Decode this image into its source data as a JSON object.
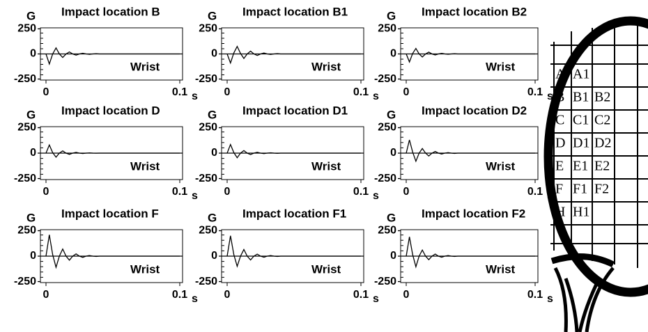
{
  "chart_data": [
    {
      "type": "line",
      "title": "Impact location B",
      "y_label": "G",
      "x_unit": "s",
      "annotation": "Wrist",
      "x": [
        0,
        0.0025,
        0.005,
        0.0075,
        0.01,
        0.0125,
        0.015,
        0.0175,
        0.02,
        0.0225,
        0.025,
        0.0275,
        0.03,
        0.0325,
        0.035,
        0.0375,
        0.04,
        0.045,
        0.05,
        0.1
      ],
      "series": [
        {
          "color": "#000000",
          "values": [
            0,
            -100,
            0,
            60,
            0,
            -35,
            0,
            20,
            0,
            -12,
            0,
            7,
            0,
            -4,
            0,
            2,
            0,
            0,
            0,
            0
          ]
        }
      ],
      "xlim": [
        0,
        0.1
      ],
      "ylim": [
        -260,
        260
      ],
      "xticks": [
        0,
        0.1
      ],
      "yticks": [
        -250,
        0,
        250
      ]
    },
    {
      "type": "line",
      "title": "Impact location B1",
      "y_label": "G",
      "x_unit": "s",
      "annotation": "Wrist",
      "x": [
        0,
        0.0025,
        0.005,
        0.0075,
        0.01,
        0.0125,
        0.015,
        0.0175,
        0.02,
        0.0225,
        0.025,
        0.0275,
        0.03,
        0.0325,
        0.035,
        0.0375,
        0.04,
        0.045,
        0.05,
        0.1
      ],
      "series": [
        {
          "color": "#000000",
          "values": [
            0,
            -90,
            10,
            75,
            5,
            -45,
            0,
            28,
            0,
            -15,
            0,
            9,
            0,
            -5,
            0,
            3,
            0,
            0,
            0,
            0
          ]
        }
      ],
      "xlim": [
        0,
        0.1
      ],
      "ylim": [
        -260,
        260
      ],
      "xticks": [
        0,
        0.1
      ],
      "yticks": [
        -250,
        0,
        250
      ]
    },
    {
      "type": "line",
      "title": "Impact location B2",
      "y_label": "G",
      "x_unit": "s",
      "annotation": "Wrist",
      "x": [
        0,
        0.0025,
        0.005,
        0.0075,
        0.01,
        0.0125,
        0.015,
        0.0175,
        0.02,
        0.0225,
        0.025,
        0.0275,
        0.03,
        0.0325,
        0.035,
        0.0375,
        0.04,
        0.045,
        0.05,
        0.1
      ],
      "series": [
        {
          "color": "#000000",
          "values": [
            0,
            -80,
            5,
            55,
            0,
            -30,
            0,
            18,
            0,
            -10,
            0,
            6,
            0,
            -3,
            0,
            2,
            0,
            0,
            0,
            0
          ]
        }
      ],
      "xlim": [
        0,
        0.1
      ],
      "ylim": [
        -260,
        260
      ],
      "xticks": [
        0,
        0.1
      ],
      "yticks": [
        -250,
        0,
        250
      ]
    },
    {
      "type": "line",
      "title": "Impact location D",
      "y_label": "G",
      "x_unit": "s",
      "annotation": "Wrist",
      "x": [
        0,
        0.0025,
        0.005,
        0.0075,
        0.01,
        0.0125,
        0.015,
        0.0175,
        0.02,
        0.0225,
        0.025,
        0.0275,
        0.03,
        0.0325,
        0.035,
        0.0375,
        0.04,
        0.045,
        0.05,
        0.1
      ],
      "series": [
        {
          "color": "#000000",
          "values": [
            0,
            80,
            5,
            -40,
            0,
            22,
            0,
            -12,
            0,
            7,
            0,
            -4,
            0,
            2,
            0,
            -1,
            0,
            0,
            0,
            0
          ]
        }
      ],
      "xlim": [
        0,
        0.1
      ],
      "ylim": [
        -260,
        260
      ],
      "xticks": [
        0,
        0.1
      ],
      "yticks": [
        -250,
        0,
        250
      ]
    },
    {
      "type": "line",
      "title": "Impact location D1",
      "y_label": "G",
      "x_unit": "s",
      "annotation": "Wrist",
      "x": [
        0,
        0.0025,
        0.005,
        0.0075,
        0.01,
        0.0125,
        0.015,
        0.0175,
        0.02,
        0.0225,
        0.025,
        0.0275,
        0.03,
        0.0325,
        0.035,
        0.0375,
        0.04,
        0.045,
        0.05,
        0.1
      ],
      "series": [
        {
          "color": "#000000",
          "values": [
            0,
            85,
            5,
            -45,
            0,
            25,
            0,
            -14,
            0,
            8,
            0,
            -5,
            0,
            3,
            0,
            -2,
            0,
            0,
            0,
            0
          ]
        }
      ],
      "xlim": [
        0,
        0.1
      ],
      "ylim": [
        -260,
        260
      ],
      "xticks": [
        0,
        0.1
      ],
      "yticks": [
        -250,
        0,
        250
      ]
    },
    {
      "type": "line",
      "title": "Impact location D2",
      "y_label": "G",
      "x_unit": "s",
      "annotation": "Wrist",
      "x": [
        0,
        0.0025,
        0.005,
        0.0075,
        0.01,
        0.0125,
        0.015,
        0.0175,
        0.02,
        0.0225,
        0.025,
        0.0275,
        0.03,
        0.0325,
        0.035,
        0.0375,
        0.04,
        0.045,
        0.05,
        0.1
      ],
      "series": [
        {
          "color": "#000000",
          "values": [
            0,
            130,
            10,
            -80,
            0,
            45,
            0,
            -28,
            0,
            16,
            0,
            -9,
            0,
            5,
            0,
            -3,
            0,
            0,
            0,
            0
          ]
        }
      ],
      "xlim": [
        0,
        0.1
      ],
      "ylim": [
        -260,
        260
      ],
      "xticks": [
        0,
        0.1
      ],
      "yticks": [
        -250,
        0,
        250
      ]
    },
    {
      "type": "line",
      "title": "Impact location F",
      "y_label": "G",
      "x_unit": "s",
      "annotation": "Wrist",
      "x": [
        0,
        0.0025,
        0.005,
        0.0075,
        0.01,
        0.0125,
        0.015,
        0.0175,
        0.02,
        0.0225,
        0.025,
        0.0275,
        0.03,
        0.0325,
        0.035,
        0.0375,
        0.04,
        0.045,
        0.05,
        0.1
      ],
      "series": [
        {
          "color": "#000000",
          "values": [
            0,
            210,
            15,
            -110,
            0,
            70,
            0,
            -40,
            0,
            22,
            0,
            -12,
            0,
            6,
            0,
            -3,
            0,
            0,
            0,
            0
          ]
        }
      ],
      "xlim": [
        0,
        0.1
      ],
      "ylim": [
        -260,
        260
      ],
      "xticks": [
        0,
        0.1
      ],
      "yticks": [
        -250,
        0,
        250
      ]
    },
    {
      "type": "line",
      "title": "Impact location F1",
      "y_label": "G",
      "x_unit": "s",
      "annotation": "Wrist",
      "x": [
        0,
        0.0025,
        0.005,
        0.0075,
        0.01,
        0.0125,
        0.015,
        0.0175,
        0.02,
        0.0225,
        0.025,
        0.0275,
        0.03,
        0.0325,
        0.035,
        0.0375,
        0.04,
        0.045,
        0.05,
        0.1
      ],
      "series": [
        {
          "color": "#000000",
          "values": [
            0,
            200,
            15,
            -100,
            0,
            65,
            0,
            -38,
            0,
            20,
            0,
            -11,
            0,
            6,
            0,
            -3,
            0,
            0,
            0,
            0
          ]
        }
      ],
      "xlim": [
        0,
        0.1
      ],
      "ylim": [
        -260,
        260
      ],
      "xticks": [
        0,
        0.1
      ],
      "yticks": [
        -250,
        0,
        250
      ]
    },
    {
      "type": "line",
      "title": "Impact location F2",
      "y_label": "G",
      "x_unit": "s",
      "annotation": "Wrist",
      "x": [
        0,
        0.0025,
        0.005,
        0.0075,
        0.01,
        0.0125,
        0.015,
        0.0175,
        0.02,
        0.0225,
        0.025,
        0.0275,
        0.03,
        0.0325,
        0.035,
        0.0375,
        0.04,
        0.045,
        0.05,
        0.1
      ],
      "series": [
        {
          "color": "#000000",
          "values": [
            0,
            190,
            15,
            -105,
            0,
            60,
            0,
            -35,
            0,
            20,
            0,
            -11,
            0,
            6,
            0,
            -3,
            0,
            0,
            0,
            0
          ]
        }
      ],
      "xlim": [
        0,
        0.1
      ],
      "ylim": [
        -260,
        260
      ],
      "xticks": [
        0,
        0.1
      ],
      "yticks": [
        -250,
        0,
        250
      ]
    }
  ],
  "racket": {
    "rows": [
      [
        "A",
        "A1"
      ],
      [
        "B",
        "B1",
        "B2"
      ],
      [
        "C",
        "C1",
        "C2"
      ],
      [
        "D",
        "D1",
        "D2"
      ],
      [
        "E",
        "E1",
        "E2"
      ],
      [
        "F",
        "F1",
        "F2"
      ],
      [
        "H",
        "H1"
      ]
    ]
  }
}
